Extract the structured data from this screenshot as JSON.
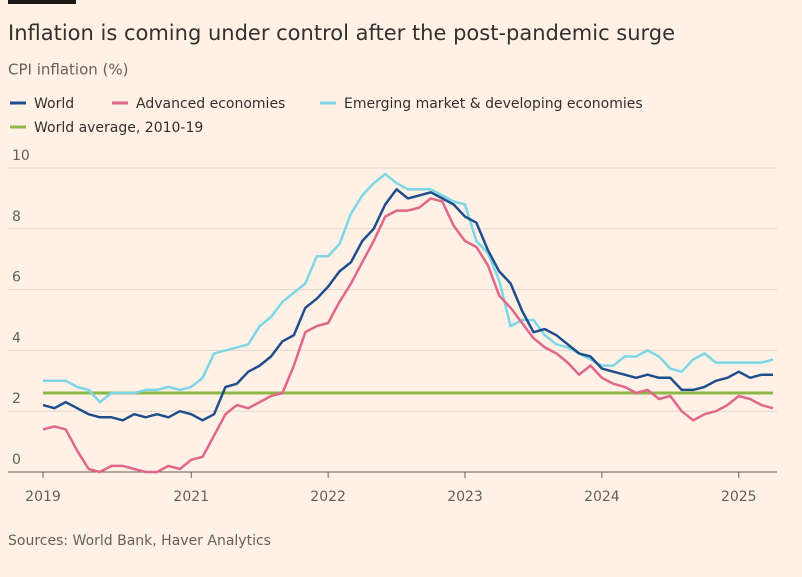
{
  "chart_data": {
    "type": "line",
    "title": "Inflation is coming under control after the post-pandemic surge",
    "subtitle": "CPI inflation (%)",
    "source": "Sources: World Bank, Haver Analytics",
    "x": [
      2019.917,
      2020,
      2020.083,
      2020.167,
      2020.25,
      2020.333,
      2020.417,
      2020.5,
      2020.583,
      2020.667,
      2020.75,
      2020.833,
      2020.917,
      2021,
      2021.083,
      2021.167,
      2021.25,
      2021.333,
      2021.417,
      2021.5,
      2021.583,
      2021.667,
      2021.75,
      2021.833,
      2021.917,
      2022,
      2022.083,
      2022.167,
      2022.25,
      2022.333,
      2022.417,
      2022.5,
      2022.583,
      2022.667,
      2022.75,
      2022.833,
      2022.917,
      2023,
      2023.083,
      2023.167,
      2023.25,
      2023.333,
      2023.417,
      2023.5,
      2023.583,
      2023.667,
      2023.75,
      2023.833,
      2023.917,
      2024,
      2024.083,
      2024.167,
      2024.25,
      2024.333,
      2024.417,
      2024.5,
      2024.583,
      2024.667,
      2024.75,
      2024.833,
      2024.917,
      2025,
      2025.083,
      2025.167,
      2025.25
    ],
    "series": [
      {
        "name": "World",
        "color": "#1f4e8c",
        "values": [
          2.2,
          2.1,
          2.3,
          2.1,
          1.9,
          1.8,
          1.8,
          1.7,
          1.9,
          1.8,
          1.9,
          1.8,
          2.0,
          1.9,
          1.7,
          1.9,
          2.8,
          2.9,
          3.3,
          3.5,
          3.8,
          4.3,
          4.5,
          5.4,
          5.7,
          6.1,
          6.6,
          6.9,
          7.6,
          8.0,
          8.8,
          9.3,
          9.0,
          9.1,
          9.2,
          9.0,
          8.8,
          8.4,
          8.2,
          7.3,
          6.6,
          6.2,
          5.3,
          4.6,
          4.7,
          4.5,
          4.2,
          3.9,
          3.8,
          3.4,
          3.3,
          3.2,
          3.1,
          3.2,
          3.1,
          3.1,
          2.7,
          2.7,
          2.8,
          3.0,
          3.1,
          3.3,
          3.1,
          3.2,
          3.2
        ]
      },
      {
        "name": "Advanced economies",
        "color": "#e0668a",
        "values": [
          1.4,
          1.5,
          1.4,
          0.7,
          0.1,
          0.0,
          0.2,
          0.2,
          0.1,
          0.0,
          0.0,
          0.2,
          0.1,
          0.4,
          0.5,
          1.2,
          1.9,
          2.2,
          2.1,
          2.3,
          2.5,
          2.6,
          3.5,
          4.6,
          4.8,
          4.9,
          5.6,
          6.2,
          6.9,
          7.6,
          8.4,
          8.6,
          8.6,
          8.7,
          9.0,
          8.9,
          8.1,
          7.6,
          7.4,
          6.8,
          5.8,
          5.4,
          4.9,
          4.4,
          4.1,
          3.9,
          3.6,
          3.2,
          3.5,
          3.1,
          2.9,
          2.8,
          2.6,
          2.7,
          2.4,
          2.5,
          2.0,
          1.7,
          1.9,
          2.0,
          2.2,
          2.5,
          2.4,
          2.2,
          2.1
        ]
      },
      {
        "name": "Emerging market & developing economies",
        "color": "#7fd6e6",
        "values": [
          3.0,
          3.0,
          3.0,
          2.8,
          2.7,
          2.3,
          2.6,
          2.6,
          2.6,
          2.7,
          2.7,
          2.8,
          2.7,
          2.8,
          3.1,
          3.9,
          4.0,
          4.1,
          4.2,
          4.8,
          5.1,
          5.6,
          5.9,
          6.2,
          7.1,
          7.1,
          7.5,
          8.5,
          9.1,
          9.5,
          9.8,
          9.5,
          9.3,
          9.3,
          9.3,
          9.1,
          8.9,
          8.8,
          7.6,
          7.2,
          6.3,
          4.8,
          5.0,
          5.0,
          4.5,
          4.2,
          4.1,
          3.9,
          3.7,
          3.5,
          3.5,
          3.8,
          3.8,
          4.0,
          3.8,
          3.4,
          3.3,
          3.7,
          3.9,
          3.6,
          3.6,
          3.6,
          3.6,
          3.6,
          3.7
        ]
      }
    ],
    "reference_line": {
      "name": "World average, 2010-19",
      "value": 2.6,
      "color": "#8cb848"
    },
    "xlim": [
      2019.917,
      2025.25
    ],
    "xticks": [
      {
        "value": 2019.917,
        "label": "2019"
      },
      2021,
      2022,
      2023,
      2024,
      2025
    ],
    "ylim": [
      0,
      10
    ],
    "yticks": [
      0,
      2,
      4,
      6,
      8,
      10
    ],
    "grid": true
  }
}
